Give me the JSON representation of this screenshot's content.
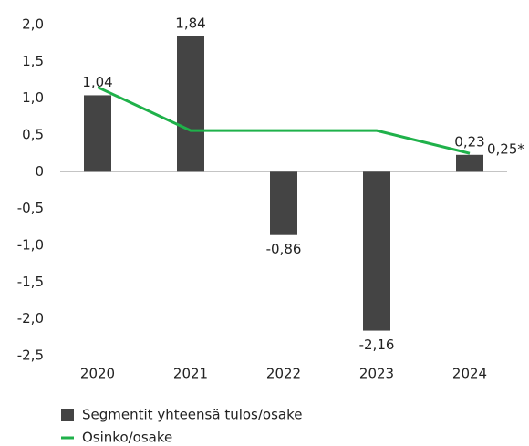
{
  "chart_data": {
    "type": "bar_line",
    "categories": [
      "2020",
      "2021",
      "2022",
      "2023",
      "2024"
    ],
    "series": [
      {
        "name": "Segmentit yhteensä tulos/osake",
        "kind": "bar",
        "color": "#444444",
        "values": [
          1.04,
          1.84,
          -0.86,
          -2.16,
          0.23
        ],
        "value_labels": [
          "1,04",
          "1,84",
          "-0,86",
          "-2,16",
          "0,23"
        ]
      },
      {
        "name": "Osinko/osake",
        "kind": "line",
        "color": "#1fb14a",
        "values": [
          1.15,
          0.56,
          0.56,
          0.56,
          0.25
        ],
        "value_labels": [
          null,
          null,
          null,
          null,
          "0,25*"
        ]
      }
    ],
    "ylim": [
      -2.5,
      2.0
    ],
    "yticks": [
      {
        "value": 2.0,
        "label": "2,0"
      },
      {
        "value": 1.5,
        "label": "1,5"
      },
      {
        "value": 1.0,
        "label": "1,0"
      },
      {
        "value": 0.5,
        "label": "0,5"
      },
      0,
      {
        "value": -0.5,
        "label": "-0,5"
      },
      {
        "value": -1.0,
        "label": "-1,0"
      },
      {
        "value": -1.5,
        "label": "-1,5"
      },
      {
        "value": -2.0,
        "label": "-2,0"
      },
      {
        "value": -2.5,
        "label": "-2,5"
      }
    ],
    "legend": "bottom-left"
  }
}
